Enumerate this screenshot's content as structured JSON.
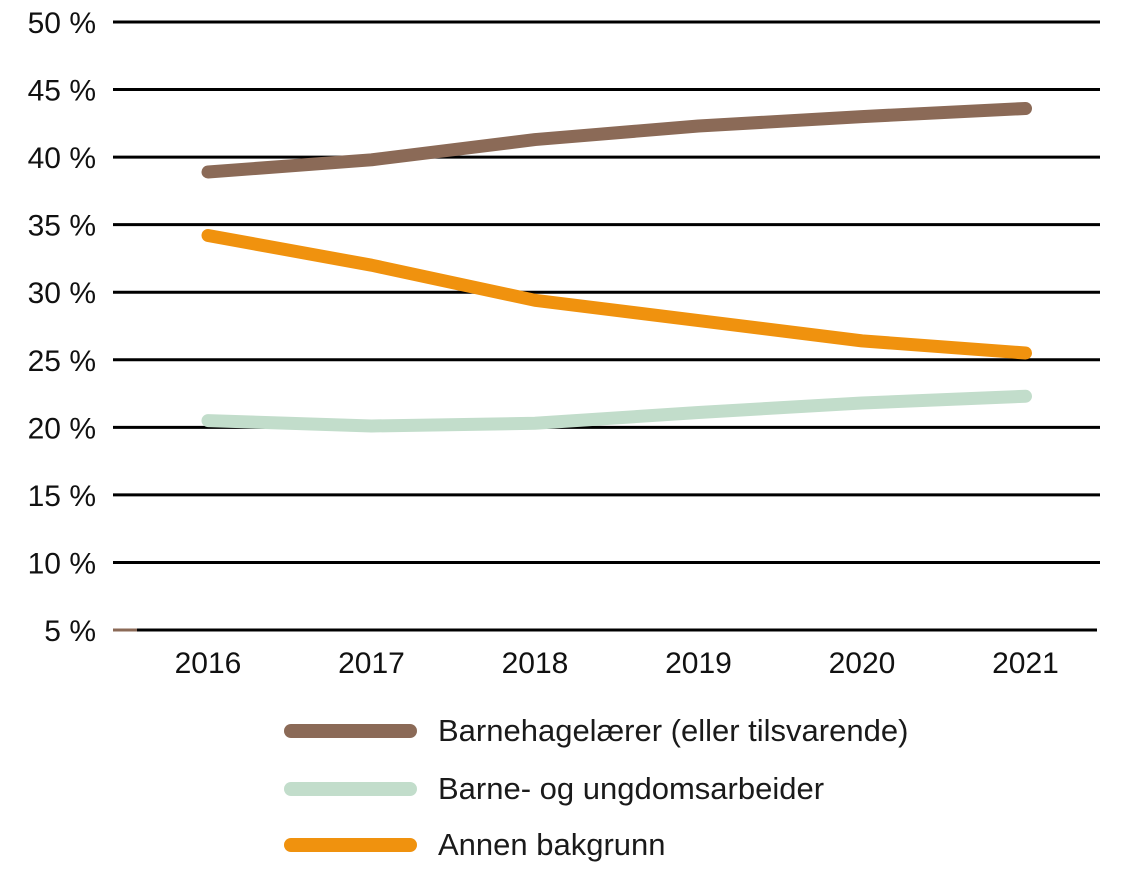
{
  "chart_data": {
    "type": "line",
    "title": "",
    "xlabel": "",
    "ylabel": "",
    "categories": [
      "2016",
      "2017",
      "2018",
      "2019",
      "2020",
      "2021"
    ],
    "y_ticks": [
      "5 %",
      "10 %",
      "15 %",
      "20 %",
      "25 %",
      "30 %",
      "35 %",
      "40 %",
      "45 %",
      "50 %"
    ],
    "ylim": [
      5,
      50
    ],
    "grid": true,
    "legend_placement": "bottom",
    "series": [
      {
        "name": "Barnehagelærer (eller tilsvarende)",
        "color": "#8B6A57",
        "values": [
          38.9,
          39.8,
          41.3,
          42.3,
          43.0,
          43.6
        ]
      },
      {
        "name": "Barne- og ungdomsarbeider",
        "color": "#C2DDCB",
        "values": [
          20.5,
          20.1,
          20.3,
          21.1,
          21.8,
          22.3
        ]
      },
      {
        "name": "Annen bakgrunn",
        "color": "#F0920E",
        "values": [
          34.2,
          32.0,
          29.4,
          27.9,
          26.4,
          25.5
        ]
      }
    ]
  }
}
